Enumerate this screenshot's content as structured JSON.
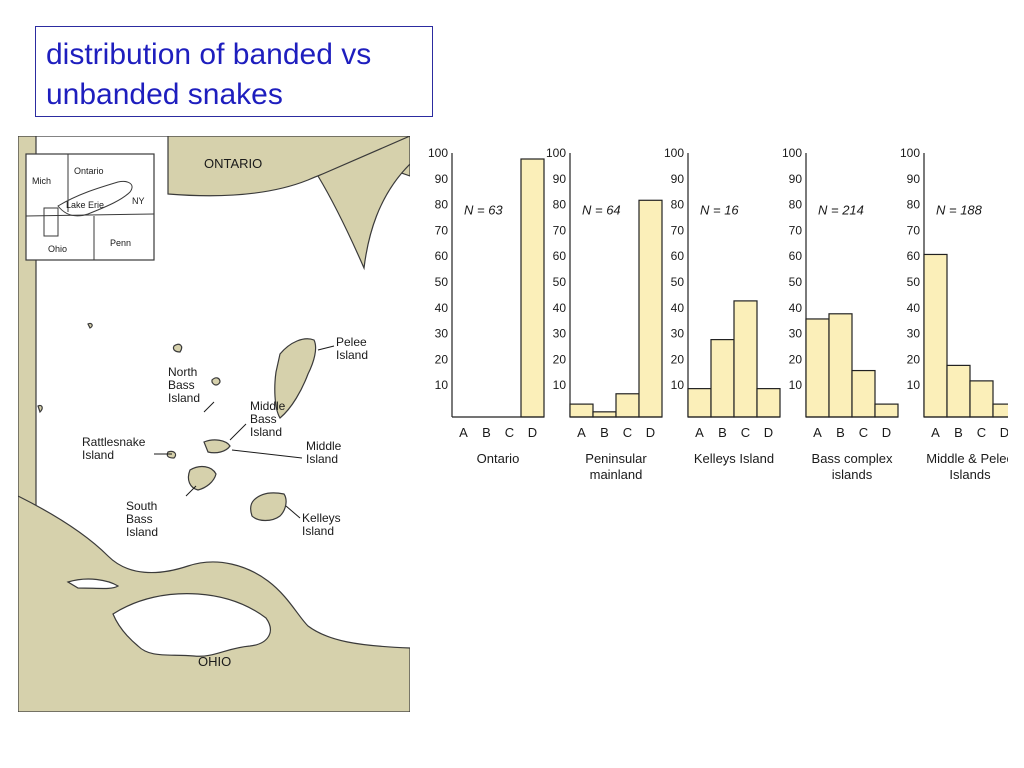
{
  "slide": {
    "title_line1": "distribution of banded vs",
    "title_line2": "unbanded snakes"
  },
  "map": {
    "labels": {
      "ontario": "ONTARIO",
      "ohio": "OHIO",
      "pelee": [
        "Pelee",
        "Island"
      ],
      "north_bass": [
        "North",
        "Bass",
        "Island"
      ],
      "middle_bass": [
        "Middle",
        "Bass",
        "Island"
      ],
      "rattlesnake": [
        "Rattlesnake",
        "Island"
      ],
      "middle": [
        "Middle",
        "Island"
      ],
      "south_bass": [
        "South",
        "Bass",
        "Island"
      ],
      "kelleys": [
        "Kelleys",
        "Island"
      ]
    },
    "inset": {
      "mich": "Mich",
      "ontario": "Ontario",
      "lake_erie": "Lake Erie",
      "ny": "NY",
      "ohio": "Ohio",
      "penn": "Penn"
    },
    "colors": {
      "land": "#d6d1ac",
      "water": "#ffffff",
      "line": "#3a3a3a"
    }
  },
  "chart_data": [
    {
      "type": "bar",
      "categories": [
        "A",
        "B",
        "C",
        "D"
      ],
      "values": [
        0,
        0,
        0,
        100
      ],
      "annotation": "N = 63",
      "xlabel": [
        "Ontario"
      ],
      "ylim": [
        0,
        100
      ],
      "yticks": [
        10,
        20,
        30,
        40,
        50,
        60,
        70,
        80,
        90,
        100
      ]
    },
    {
      "type": "bar",
      "categories": [
        "A",
        "B",
        "C",
        "D"
      ],
      "values": [
        5,
        2,
        9,
        84
      ],
      "annotation": "N = 64",
      "xlabel": [
        "Peninsular",
        "mainland"
      ],
      "ylim": [
        0,
        100
      ],
      "yticks": [
        10,
        20,
        30,
        40,
        50,
        60,
        70,
        80,
        90,
        100
      ]
    },
    {
      "type": "bar",
      "categories": [
        "A",
        "B",
        "C",
        "D"
      ],
      "values": [
        11,
        30,
        45,
        11
      ],
      "annotation": "N = 16",
      "xlabel": [
        "Kelleys Island"
      ],
      "ylim": [
        0,
        100
      ],
      "yticks": [
        10,
        20,
        30,
        40,
        50,
        60,
        70,
        80,
        90,
        100
      ]
    },
    {
      "type": "bar",
      "categories": [
        "A",
        "B",
        "C",
        "D"
      ],
      "values": [
        38,
        40,
        18,
        5
      ],
      "annotation": "N =  214",
      "xlabel": [
        "Bass complex",
        "islands"
      ],
      "ylim": [
        0,
        100
      ],
      "yticks": [
        10,
        20,
        30,
        40,
        50,
        60,
        70,
        80,
        90,
        100
      ]
    },
    {
      "type": "bar",
      "categories": [
        "A",
        "B",
        "C",
        "D"
      ],
      "values": [
        63,
        20,
        14,
        5
      ],
      "annotation": "N = 188",
      "xlabel": [
        "Middle & Pelee",
        "Islands"
      ],
      "ylim": [
        0,
        100
      ],
      "yticks": [
        10,
        20,
        30,
        40,
        50,
        60,
        70,
        80,
        90,
        100
      ]
    }
  ],
  "colors": {
    "bar_fill": "#fbefb9",
    "bar_stroke": "#222222",
    "title_text": "#1e1ebe"
  }
}
